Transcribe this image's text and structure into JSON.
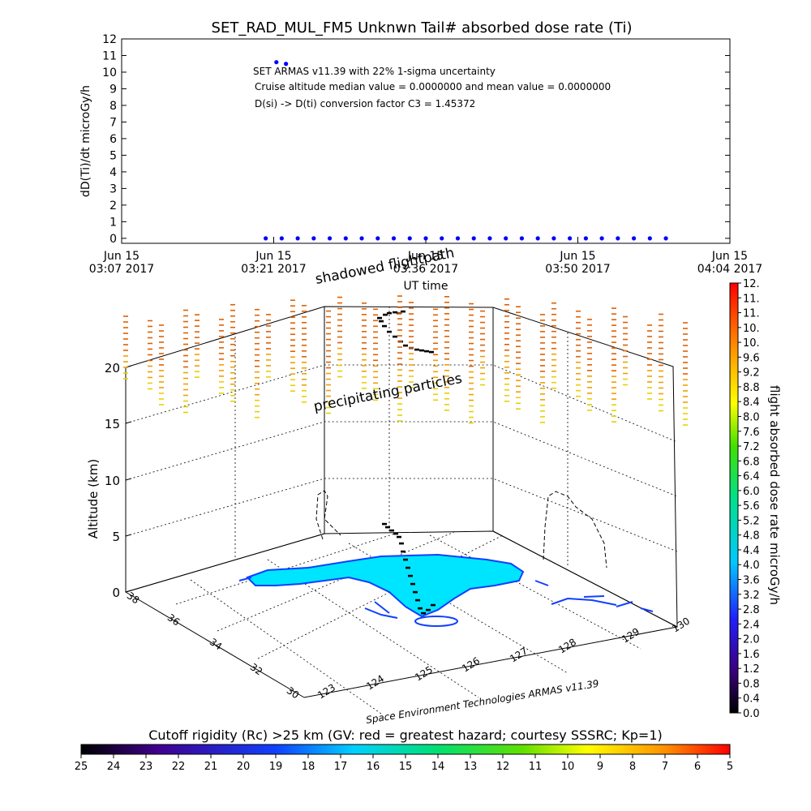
{
  "chart_data": [
    {
      "type": "scatter",
      "title": "SET_RAD_MUL_FM5 Unknwn Tail#  absorbed dose rate (Ti)",
      "ylabel": "dD(Ti)/dt microGy/h",
      "xlabel": "UT time",
      "ylim": [
        -0.3,
        12
      ],
      "yticks": [
        "0",
        "1",
        "2",
        "3",
        "4",
        "5",
        "6",
        "7",
        "8",
        "9",
        "10",
        "11",
        "12"
      ],
      "xticks": [
        {
          "date": "Jun 15",
          "time": "03:07 2017"
        },
        {
          "date": "Jun 15",
          "time": "03:21 2017"
        },
        {
          "date": "Jun 15",
          "time": "03:36 2017"
        },
        {
          "date": "Jun 15",
          "time": "03:50 2017"
        },
        {
          "date": "Jun 15",
          "time": "04:04 2017"
        }
      ],
      "x_range_minutes": [
        0,
        57
      ],
      "annotations": [
        "SET ARMAS v11.39 with 22% 1-sigma uncertainty",
        "Cruise altitude median value = 0.0000000 and mean value = 0.0000000",
        "D(si) -> D(ti) conversion factor C3 = 1.45372"
      ],
      "series": [
        {
          "color": "#0000ff",
          "x_minutes": [
            13.5,
            15.0,
            16.5,
            18.0,
            19.5,
            21.0,
            22.5,
            24.0,
            25.5,
            27.0,
            28.5,
            30.0,
            31.5,
            33.0,
            34.5,
            36.0,
            37.5,
            39.0,
            40.5,
            42.0,
            43.5,
            45.0,
            46.5,
            48.0,
            49.5,
            51.0
          ],
          "y": [
            0,
            0,
            0,
            0,
            0,
            0,
            0,
            0,
            0,
            0,
            0,
            0,
            0,
            0,
            0,
            0,
            0,
            0,
            0,
            0,
            0,
            0,
            0,
            0,
            0,
            0
          ]
        },
        {
          "color": "#0000ff",
          "x_minutes": [
            14.5,
            15.4
          ],
          "y": [
            10.6,
            10.5
          ]
        }
      ]
    },
    {
      "type": "3d-scatter",
      "ylabel": "Altitude (km)",
      "zticks": [
        "0",
        "5",
        "10",
        "15",
        "20"
      ],
      "lat_ticks": [
        "30",
        "32",
        "34",
        "36",
        "38"
      ],
      "lon_ticks": [
        "123",
        "124",
        "125",
        "126",
        "127",
        "128",
        "129",
        "130"
      ],
      "footer_credit": "Space Environment Technologies ARMAS v11.39",
      "labels": {
        "shadowed": "shadowed flightpath",
        "precipitating": "precipitating particles"
      },
      "colorbar": {
        "title": "flight absorbed dose rate microGy/h",
        "ticks": [
          "0.0",
          "0.4",
          "0.8",
          "1.2",
          "1.6",
          "2.0",
          "2.4",
          "2.8",
          "3.2",
          "3.6",
          "4.0",
          "4.4",
          "4.8",
          "5.2",
          "5.6",
          "6.0",
          "6.4",
          "6.8",
          "7.2",
          "7.6",
          "8.0",
          "8.4",
          "8.8",
          "9.2",
          "9.6",
          "10.",
          "10.",
          "11.",
          "11.",
          "12."
        ]
      }
    },
    {
      "type": "colorbar",
      "title": "Cutoff rigidity (Rc) >25 km (GV: red = greatest hazard; courtesy SSSRC; Kp=1)",
      "ticks": [
        "25",
        "24",
        "23",
        "22",
        "21",
        "20",
        "19",
        "18",
        "17",
        "16",
        "15",
        "14",
        "13",
        "12",
        "11",
        "10",
        "9",
        "8",
        "7",
        "6",
        "5"
      ]
    }
  ]
}
